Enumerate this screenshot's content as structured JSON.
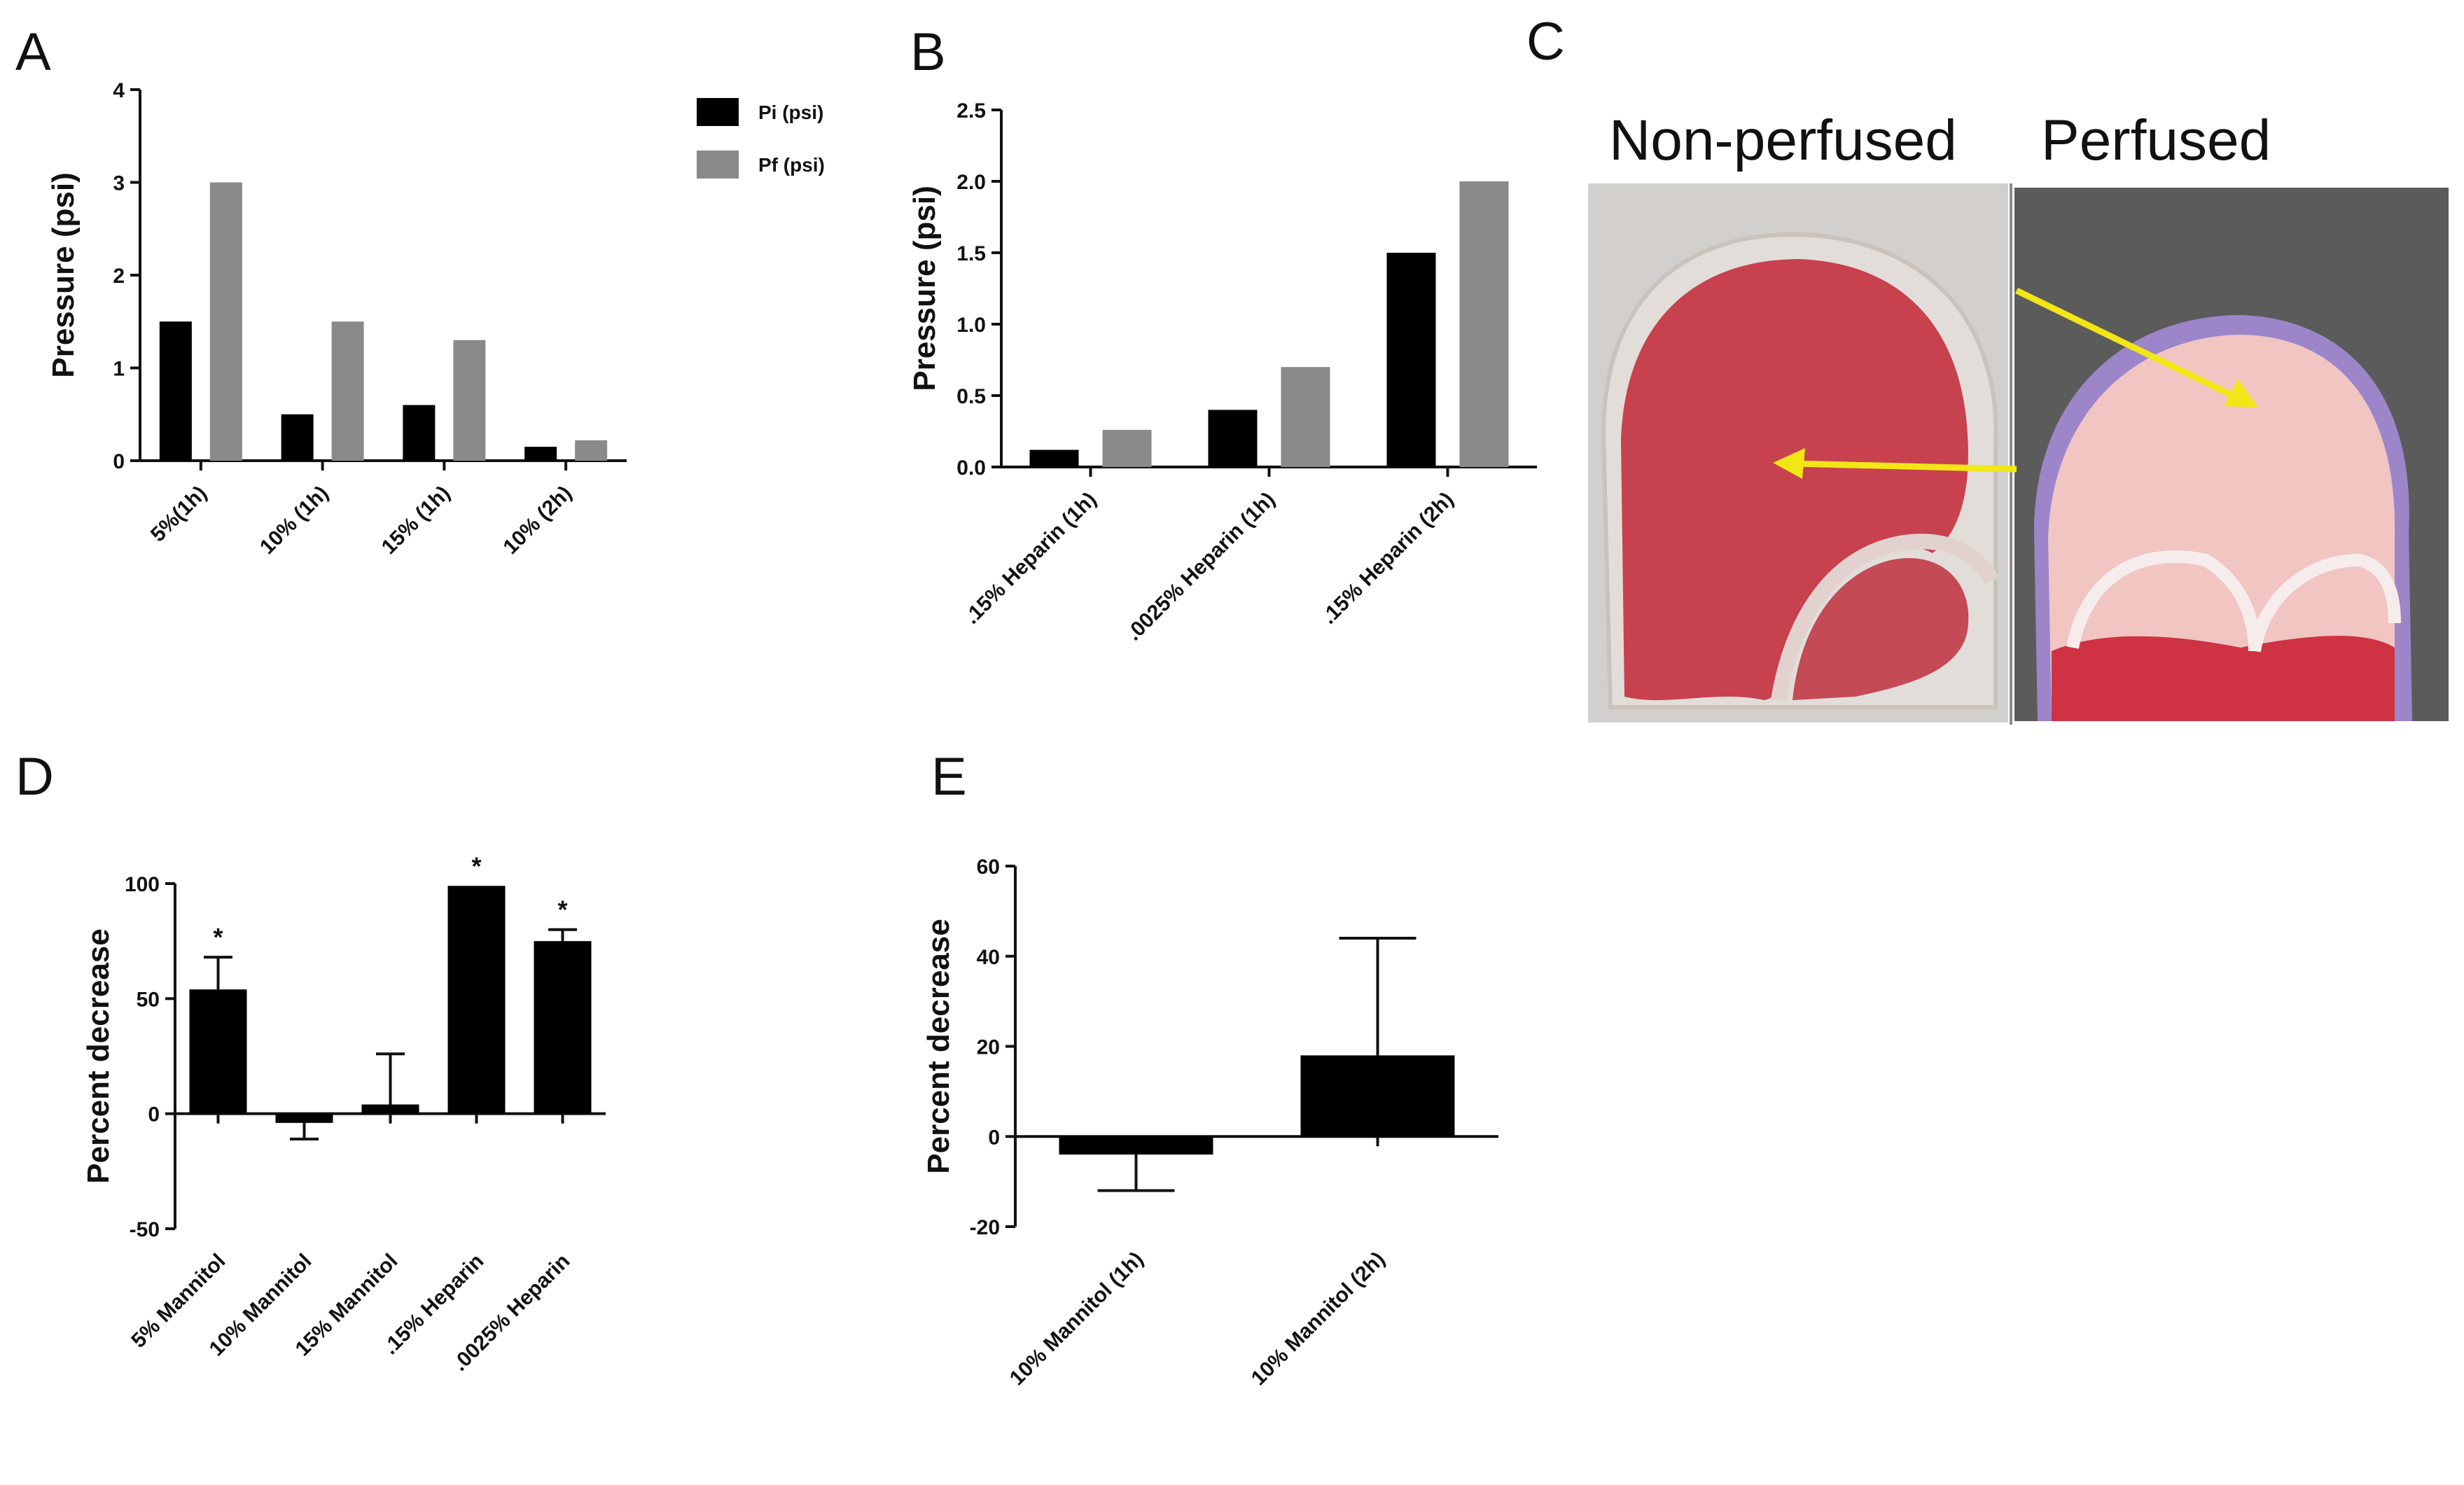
{
  "panels": {
    "a": "A",
    "b": "B",
    "c": "C",
    "d": "D",
    "e": "E"
  },
  "photo": {
    "left_label": "Non-perfused",
    "right_label": "Perfused",
    "colors": {
      "tissue_red": "#c8414e",
      "arrow_yellow": "#f1e616",
      "background_left": "#cfcac6",
      "background_right": "#5a5a5a"
    }
  },
  "colors": {
    "pi": "#000000",
    "pf": "#8a8a8d",
    "bar": "#000000"
  },
  "chart_data": [
    {
      "panel": "A",
      "type": "bar",
      "ylabel": "Pressure (psi)",
      "ylim": [
        0,
        4
      ],
      "yticks": [
        0,
        1,
        2,
        3,
        4
      ],
      "categories": [
        "5%(1h)",
        "10% (1h)",
        "15% (1h)",
        "10% (2h)"
      ],
      "series": [
        {
          "name": "Pi (psi)",
          "values": [
            1.5,
            0.5,
            0.6,
            0.15
          ]
        },
        {
          "name": "Pf (psi)",
          "values": [
            3.0,
            1.5,
            1.3,
            0.22
          ]
        }
      ],
      "legend": "top-right"
    },
    {
      "panel": "B",
      "type": "bar",
      "ylabel": "Pressure (psi)",
      "ylim": [
        0,
        2.5
      ],
      "yticks": [
        "0.0",
        "0.5",
        "1.0",
        "1.5",
        "2.0",
        "2.5"
      ],
      "categories": [
        ".15% Heparin (1h)",
        ".0025% Heparin (1h)",
        ".15% Heparin (2h)"
      ],
      "series": [
        {
          "values": [
            0.12,
            0.4,
            1.5
          ]
        },
        {
          "values": [
            0.26,
            0.7,
            2.0
          ]
        }
      ]
    },
    {
      "panel": "D",
      "type": "bar",
      "ylabel": "Percent decrease",
      "ylim": [
        -50,
        100
      ],
      "yticks": [
        -50,
        0,
        50,
        100
      ],
      "categories": [
        "5% Mannitol",
        "10% Mannitol",
        "15% Mannitol",
        ".15% Heparin",
        ".0025% Heparin"
      ],
      "values": [
        54,
        -4,
        4,
        99,
        75
      ],
      "errors": [
        14,
        7,
        22,
        0,
        5
      ],
      "significance": [
        "*",
        "",
        "",
        "*",
        "*"
      ]
    },
    {
      "panel": "E",
      "type": "bar",
      "ylabel": "Percent decrease",
      "ylim": [
        -20,
        60
      ],
      "yticks": [
        -20,
        0,
        20,
        40,
        60
      ],
      "categories": [
        "10% Mannitol (1h)",
        "10% Mannitol (2h)"
      ],
      "values": [
        -4,
        18
      ],
      "errors": [
        8,
        26
      ]
    }
  ]
}
